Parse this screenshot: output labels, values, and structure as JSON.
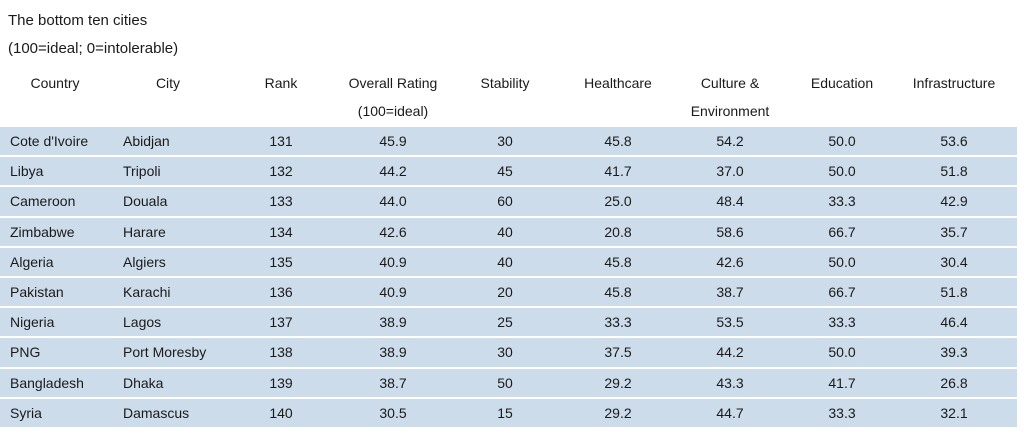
{
  "header": {
    "title": "The bottom ten cities",
    "subtitle": "(100=ideal; 0=intolerable)"
  },
  "table": {
    "columns": [
      [
        "Country"
      ],
      [
        "City"
      ],
      [
        "Rank"
      ],
      [
        "Overall Rating",
        "(100=ideal)"
      ],
      [
        "Stability"
      ],
      [
        "Healthcare"
      ],
      [
        "Culture &",
        "Environment"
      ],
      [
        "Education"
      ],
      [
        "Infrastructure"
      ]
    ],
    "rows": [
      [
        "Cote d'Ivoire",
        "Abidjan",
        "131",
        "45.9",
        "30",
        "45.8",
        "54.2",
        "50.0",
        "53.6"
      ],
      [
        "Libya",
        "Tripoli",
        "132",
        "44.2",
        "45",
        "41.7",
        "37.0",
        "50.0",
        "51.8"
      ],
      [
        "Cameroon",
        "Douala",
        "133",
        "44.0",
        "60",
        "25.0",
        "48.4",
        "33.3",
        "42.9"
      ],
      [
        "Zimbabwe",
        "Harare",
        "134",
        "42.6",
        "40",
        "20.8",
        "58.6",
        "66.7",
        "35.7"
      ],
      [
        "Algeria",
        "Algiers",
        "135",
        "40.9",
        "40",
        "45.8",
        "42.6",
        "50.0",
        "30.4"
      ],
      [
        "Pakistan",
        "Karachi",
        "136",
        "40.9",
        "20",
        "45.8",
        "38.7",
        "66.7",
        "51.8"
      ],
      [
        "Nigeria",
        "Lagos",
        "137",
        "38.9",
        "25",
        "33.3",
        "53.5",
        "33.3",
        "46.4"
      ],
      [
        "PNG",
        "Port Moresby",
        "138",
        "38.9",
        "30",
        "37.5",
        "44.2",
        "50.0",
        "39.3"
      ],
      [
        "Bangladesh",
        "Dhaka",
        "139",
        "38.7",
        "50",
        "29.2",
        "43.3",
        "41.7",
        "26.8"
      ],
      [
        "Syria",
        "Damascus",
        "140",
        "30.5",
        "15",
        "29.2",
        "44.7",
        "33.3",
        "32.1"
      ]
    ]
  }
}
